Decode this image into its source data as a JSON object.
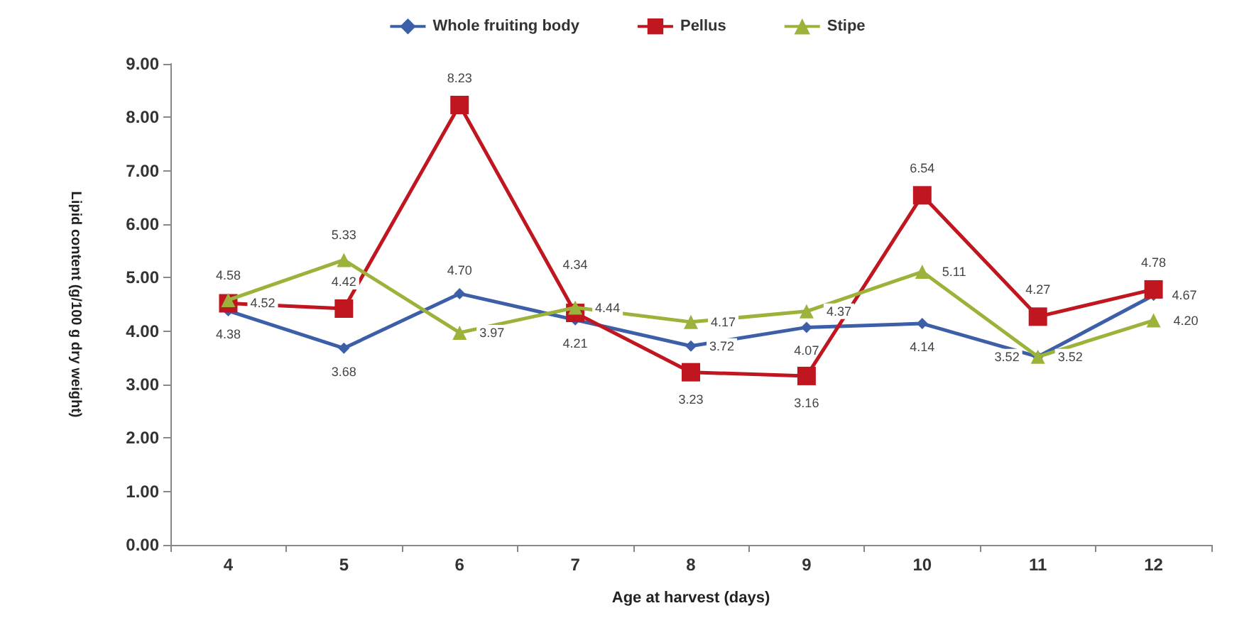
{
  "chart_data": {
    "type": "line",
    "xlabel": "Age at harvest (days)",
    "ylabel": "Lipid content (g/100 g dry weight)",
    "categories": [
      "4",
      "5",
      "6",
      "7",
      "8",
      "9",
      "10",
      "11",
      "12"
    ],
    "series": [
      {
        "name": "Whole fruiting body",
        "color": "#3d5fa8",
        "marker": "diamond",
        "values": [
          4.38,
          3.68,
          4.7,
          4.21,
          3.72,
          4.07,
          4.14,
          3.52,
          4.67
        ],
        "value_labels": [
          "4.38",
          "3.68",
          "4.70",
          "4.21",
          "3.72",
          "4.07",
          "4.14",
          "3.52",
          "4.67"
        ]
      },
      {
        "name": "Pellus",
        "color": "#c0161f",
        "marker": "square",
        "values": [
          4.52,
          4.42,
          8.23,
          4.34,
          3.23,
          3.16,
          6.54,
          4.27,
          4.78
        ],
        "value_labels": [
          "4.52",
          "4.42",
          "8.23",
          "4.34",
          "3.23",
          "3.16",
          "6.54",
          "4.27",
          "4.78"
        ]
      },
      {
        "name": "Stipe",
        "color": "#9bb33a",
        "marker": "triangle",
        "values": [
          4.58,
          5.33,
          3.97,
          4.44,
          4.17,
          4.37,
          5.11,
          3.52,
          4.2
        ],
        "value_labels": [
          "4.58",
          "5.33",
          "3.97",
          "4.44",
          "4.17",
          "4.37",
          "5.11",
          "3.52",
          "4.20"
        ]
      }
    ],
    "ylim": [
      0,
      9
    ],
    "yticks": [
      {
        "value": 0,
        "label": "0.00"
      },
      {
        "value": 1,
        "label": "1.00"
      },
      {
        "value": 2,
        "label": "2.00"
      },
      {
        "value": 3,
        "label": "3.00"
      },
      {
        "value": 4,
        "label": "4.00"
      },
      {
        "value": 5,
        "label": "5.00"
      },
      {
        "value": 6,
        "label": "6.00"
      },
      {
        "value": 7,
        "label": "7.00"
      },
      {
        "value": 8,
        "label": "8.00"
      },
      {
        "value": 9,
        "label": "9.00"
      }
    ],
    "grid": false,
    "legend": "top"
  }
}
